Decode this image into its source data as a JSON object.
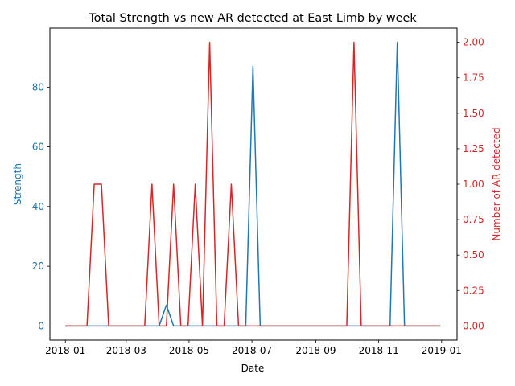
{
  "chart_data": {
    "type": "line",
    "title": "Total Strength vs new AR detected at East Limb by week",
    "xlabel": "Date",
    "ylabel_left": "Strength",
    "ylabel_right": "Number of AR detected",
    "x_axis": {
      "kind": "date",
      "range": [
        "2017-12-17",
        "2019-01-16"
      ],
      "ticks": [
        "2018-01-01",
        "2018-03-01",
        "2018-05-01",
        "2018-07-01",
        "2018-09-01",
        "2018-11-01",
        "2019-01-01"
      ],
      "tick_labels": [
        "2018-01",
        "2018-03",
        "2018-05",
        "2018-07",
        "2018-09",
        "2018-11",
        "2019-01"
      ]
    },
    "y_left": {
      "range": [
        -4.75,
        99.75
      ],
      "ticks": [
        0,
        20,
        40,
        60,
        80
      ],
      "tick_labels": [
        "0",
        "20",
        "40",
        "60",
        "80"
      ],
      "color": "#1f77b4"
    },
    "y_right": {
      "range": [
        -0.1,
        2.1
      ],
      "ticks": [
        0,
        0.25,
        0.5,
        0.75,
        1.0,
        1.25,
        1.5,
        1.75,
        2.0
      ],
      "tick_labels": [
        "0.00",
        "0.25",
        "0.50",
        "0.75",
        "1.00",
        "1.25",
        "1.50",
        "1.75",
        "2.00"
      ],
      "color": "#d62728"
    },
    "grid": false,
    "legend": "none",
    "x": [
      "2018-01-01",
      "2018-01-08",
      "2018-01-15",
      "2018-01-22",
      "2018-01-29",
      "2018-02-05",
      "2018-02-12",
      "2018-02-19",
      "2018-02-26",
      "2018-03-05",
      "2018-03-12",
      "2018-03-19",
      "2018-03-26",
      "2018-04-02",
      "2018-04-09",
      "2018-04-16",
      "2018-04-23",
      "2018-04-30",
      "2018-05-07",
      "2018-05-14",
      "2018-05-21",
      "2018-05-28",
      "2018-06-04",
      "2018-06-11",
      "2018-06-18",
      "2018-06-25",
      "2018-07-02",
      "2018-07-09",
      "2018-07-16",
      "2018-07-23",
      "2018-07-30",
      "2018-08-06",
      "2018-08-13",
      "2018-08-20",
      "2018-08-27",
      "2018-09-03",
      "2018-09-10",
      "2018-09-17",
      "2018-09-24",
      "2018-10-01",
      "2018-10-08",
      "2018-10-15",
      "2018-10-22",
      "2018-10-29",
      "2018-11-05",
      "2018-11-12",
      "2018-11-19",
      "2018-11-26",
      "2018-12-03",
      "2018-12-10",
      "2018-12-17",
      "2018-12-24",
      "2018-12-31"
    ],
    "series": [
      {
        "name": "Strength",
        "axis": "left",
        "color": "#1f77b4",
        "values": [
          0,
          0,
          0,
          0,
          0,
          0,
          0,
          0,
          0,
          0,
          0,
          0,
          0,
          0,
          7,
          0,
          0,
          0,
          0,
          0,
          0,
          0,
          0,
          0,
          0,
          0,
          87,
          0,
          0,
          0,
          0,
          0,
          0,
          0,
          0,
          0,
          0,
          0,
          0,
          0,
          0,
          0,
          0,
          0,
          0,
          0,
          95,
          0,
          0,
          0,
          0,
          0,
          0
        ]
      },
      {
        "name": "Number of AR detected",
        "axis": "right",
        "color": "#d62728",
        "values": [
          0,
          0,
          0,
          0,
          1,
          1,
          0,
          0,
          0,
          0,
          0,
          0,
          1,
          0,
          0,
          1,
          0,
          0,
          1,
          0,
          2,
          0,
          0,
          1,
          0,
          0,
          0,
          0,
          0,
          0,
          0,
          0,
          0,
          0,
          0,
          0,
          0,
          0,
          0,
          0,
          2,
          0,
          0,
          0,
          0,
          0,
          0,
          0,
          0,
          0,
          0,
          0,
          0
        ]
      }
    ]
  }
}
